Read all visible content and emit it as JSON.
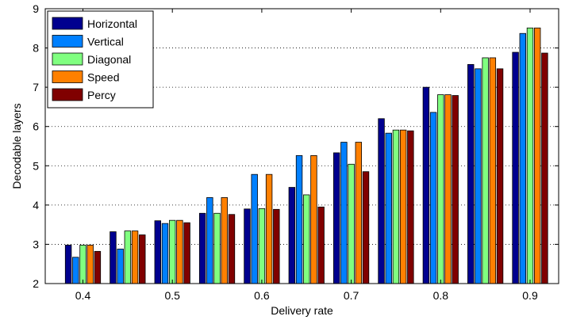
{
  "chart_data": {
    "type": "bar",
    "xlabel": "Delivery rate",
    "ylabel": "Decodable layers",
    "ylim": [
      2,
      9
    ],
    "yticks": [
      "2",
      "3",
      "4",
      "5",
      "6",
      "7",
      "8",
      "9"
    ],
    "xtick_labels": [
      "0.4",
      "0.5",
      "0.6",
      "0.7",
      "0.8",
      "0.9"
    ],
    "categories": [
      "0.40",
      "0.45",
      "0.50",
      "0.55",
      "0.60",
      "0.65",
      "0.70",
      "0.75",
      "0.80",
      "0.85",
      "0.90"
    ],
    "grid": "horizontal dotted",
    "legend_position": "top-left",
    "series": [
      {
        "name": "Horizontal",
        "color": "#00008f",
        "values": [
          2.98,
          3.32,
          3.6,
          3.79,
          3.9,
          4.45,
          5.33,
          6.2,
          7.0,
          7.58,
          7.89
        ]
      },
      {
        "name": "Vertical",
        "color": "#0080ff",
        "values": [
          2.67,
          2.88,
          3.53,
          4.19,
          4.78,
          5.26,
          5.6,
          5.83,
          6.36,
          7.47,
          8.37
        ]
      },
      {
        "name": "Diagonal",
        "color": "#80ff80",
        "values": [
          2.98,
          3.34,
          3.61,
          3.79,
          3.91,
          4.26,
          5.04,
          5.91,
          6.81,
          7.75,
          8.51
        ]
      },
      {
        "name": "Speed",
        "color": "#ff8000",
        "values": [
          2.98,
          3.34,
          3.61,
          4.19,
          4.78,
          5.26,
          5.6,
          5.91,
          6.81,
          7.75,
          8.51
        ]
      },
      {
        "name": "Percy",
        "color": "#800000",
        "values": [
          2.82,
          3.24,
          3.55,
          3.76,
          3.89,
          3.95,
          4.85,
          5.89,
          6.79,
          7.47,
          7.87
        ]
      }
    ]
  }
}
